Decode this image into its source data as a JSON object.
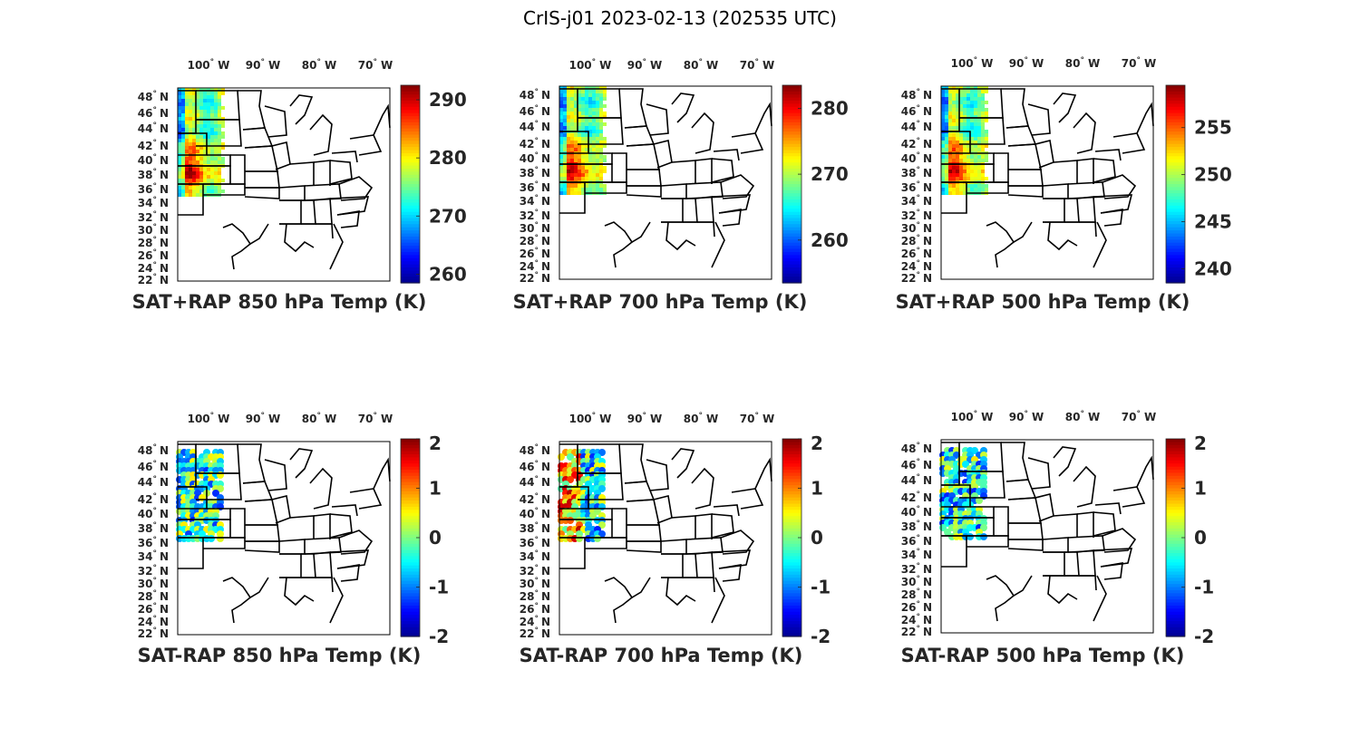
{
  "figure_title": "CrIS-j01 2023-02-13 (202535 UTC)",
  "colormap": "jet",
  "colormap_stops": [
    "#00008f",
    "#0000ff",
    "#0080ff",
    "#00ffff",
    "#80ff80",
    "#ffff00",
    "#ff8000",
    "#ff0000",
    "#800000"
  ],
  "map_style": {
    "land": "#ffffff",
    "border": "#000000"
  },
  "longitude_labels": [
    {
      "deg": "100",
      "sym": "°",
      "dir": "W"
    },
    {
      "deg": "90",
      "sym": "°",
      "dir": "W"
    },
    {
      "deg": "80",
      "sym": "°",
      "dir": "W"
    },
    {
      "deg": "70",
      "sym": "°",
      "dir": "W"
    }
  ],
  "latitude_labels": [
    {
      "deg": "48",
      "sym": "°",
      "dir": "N"
    },
    {
      "deg": "46",
      "sym": "°",
      "dir": "N"
    },
    {
      "deg": "44",
      "sym": "°",
      "dir": "N"
    },
    {
      "deg": "42",
      "sym": "°",
      "dir": "N"
    },
    {
      "deg": "40",
      "sym": "°",
      "dir": "N"
    },
    {
      "deg": "38",
      "sym": "°",
      "dir": "N"
    },
    {
      "deg": "36",
      "sym": "°",
      "dir": "N"
    },
    {
      "deg": "34",
      "sym": "°",
      "dir": "N"
    },
    {
      "deg": "32",
      "sym": "°",
      "dir": "N"
    },
    {
      "deg": "30",
      "sym": "°",
      "dir": "N"
    },
    {
      "deg": "28",
      "sym": "°",
      "dir": "N"
    },
    {
      "deg": "26",
      "sym": "°",
      "dir": "N"
    },
    {
      "deg": "24",
      "sym": "°",
      "dir": "N"
    },
    {
      "deg": "22",
      "sym": "°",
      "dir": "N"
    }
  ],
  "chart_data": [
    {
      "type": "heatmap",
      "title": "SAT+RAP 850 hPa Temp (K)",
      "variable": "sum",
      "clim": [
        258.5,
        292.5
      ],
      "colorbar_ticks": [
        "290",
        "280",
        "270",
        "260"
      ],
      "colorbar_values": [
        290,
        280,
        270,
        260
      ]
    },
    {
      "type": "heatmap",
      "title": "SAT+RAP 700 hPa Temp (K)",
      "variable": "sum",
      "clim": [
        253.5,
        283.5
      ],
      "colorbar_ticks": [
        "280",
        "270",
        "260"
      ],
      "colorbar_values": [
        280,
        270,
        260
      ]
    },
    {
      "type": "heatmap",
      "title": "SAT+RAP 500 hPa Temp (K)",
      "variable": "sum",
      "clim": [
        238.5,
        259.5
      ],
      "colorbar_ticks": [
        "255",
        "250",
        "245",
        "240"
      ],
      "colorbar_values": [
        255,
        250,
        245,
        240
      ]
    },
    {
      "type": "heatmap",
      "title": "SAT-RAP 850 hPa Temp (K)",
      "variable": "diff",
      "clim": [
        -2,
        2
      ],
      "colorbar_ticks": [
        "2",
        "1",
        "0",
        "-1",
        "-2"
      ],
      "colorbar_values": [
        2,
        1,
        0,
        -1,
        -2
      ]
    },
    {
      "type": "heatmap",
      "title": "SAT-RAP 700 hPa Temp (K)",
      "variable": "diff",
      "clim": [
        -2,
        2
      ],
      "colorbar_ticks": [
        "2",
        "1",
        "0",
        "-1",
        "-2"
      ],
      "colorbar_values": [
        2,
        1,
        0,
        -1,
        -2
      ]
    },
    {
      "type": "heatmap",
      "title": "SAT-RAP 500 hPa Temp (K)",
      "variable": "diff",
      "clim": [
        -2,
        2
      ],
      "colorbar_ticks": [
        "2",
        "1",
        "0",
        "-1",
        "-2"
      ],
      "colorbar_values": [
        2,
        1,
        0,
        -1,
        -2
      ]
    }
  ]
}
